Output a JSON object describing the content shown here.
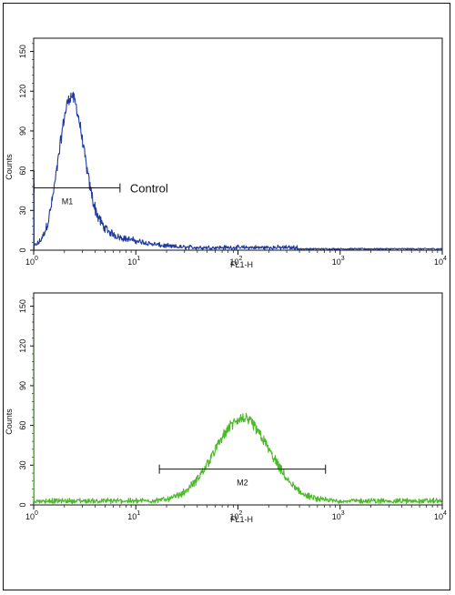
{
  "chart_data": [
    {
      "type": "line",
      "title": "",
      "xlabel": "FL1-H",
      "ylabel": "Counts",
      "xscale": "log",
      "xlim": [
        1,
        10000
      ],
      "ylim": [
        0,
        160
      ],
      "x_ticks": [
        {
          "value": 1,
          "base": "10",
          "exp": "0"
        },
        {
          "value": 10,
          "base": "10",
          "exp": "1"
        },
        {
          "value": 100,
          "base": "10",
          "exp": "2"
        },
        {
          "value": 1000,
          "base": "10",
          "exp": "3"
        },
        {
          "value": 10000,
          "base": "10",
          "exp": "4"
        }
      ],
      "y_ticks": [
        "0",
        "30",
        "60",
        "90",
        "120",
        "150"
      ],
      "color": "#1f3a9e",
      "series": [
        {
          "peaks": [
            {
              "center": 2.3,
              "width": 0.12,
              "height": 108
            },
            {
              "center": 3.6,
              "width": 0.15,
              "height": 12
            },
            {
              "center": 7,
              "width": 0.25,
              "height": 6
            }
          ],
          "baseline": 2,
          "extent": [
            1,
            400
          ],
          "noise": 9,
          "left_edge_spike": 60
        }
      ],
      "gate": {
        "label": "M1",
        "x1": 1,
        "x2": 7,
        "y": 47
      },
      "annotation": "Control"
    },
    {
      "type": "line",
      "title": "",
      "xlabel": "FL1-H",
      "ylabel": "Counts",
      "xscale": "log",
      "xlim": [
        1,
        10000
      ],
      "ylim": [
        0,
        160
      ],
      "x_ticks": [
        {
          "value": 1,
          "base": "10",
          "exp": "0"
        },
        {
          "value": 10,
          "base": "10",
          "exp": "1"
        },
        {
          "value": 100,
          "base": "10",
          "exp": "2"
        },
        {
          "value": 1000,
          "base": "10",
          "exp": "3"
        },
        {
          "value": 10000,
          "base": "10",
          "exp": "4"
        }
      ],
      "y_ticks": [
        "0",
        "30",
        "60",
        "90",
        "120",
        "150"
      ],
      "color": "#4cb82a",
      "series": [
        {
          "peaks": [
            {
              "center": 110,
              "width": 0.27,
              "height": 62
            }
          ],
          "baseline": 3,
          "extent": [
            1,
            10000
          ],
          "noise": 7,
          "left_edge_spike": 135
        }
      ],
      "gate": {
        "label": "M2",
        "x1": 17,
        "x2": 720,
        "y": 27
      }
    }
  ]
}
